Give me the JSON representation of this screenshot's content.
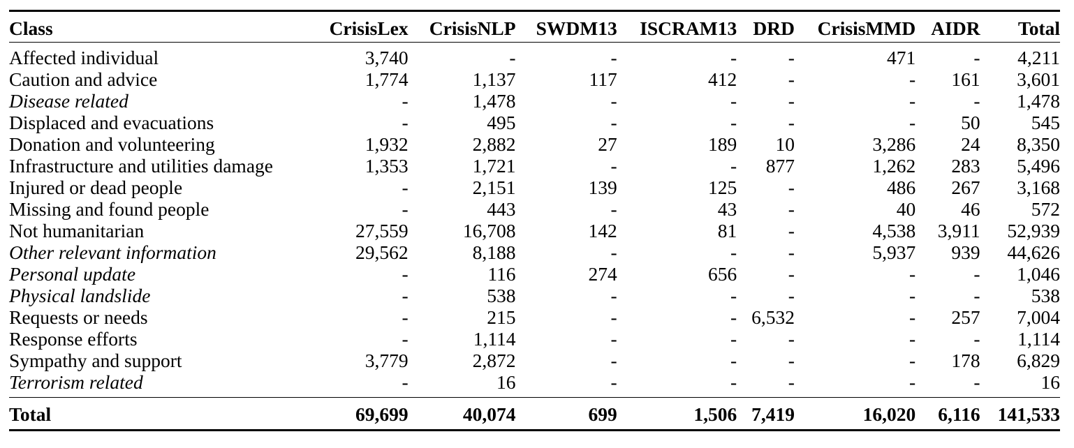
{
  "table": {
    "columns": [
      "Class",
      "CrisisLex",
      "CrisisNLP",
      "SWDM13",
      "ISCRAM13",
      "DRD",
      "CrisisMMD",
      "AIDR",
      "Total"
    ],
    "rows": [
      {
        "label": "Affected individual",
        "italic": false,
        "cells": [
          "3,740",
          "-",
          "-",
          "-",
          "-",
          "471",
          "-",
          "4,211"
        ]
      },
      {
        "label": "Caution and advice",
        "italic": false,
        "cells": [
          "1,774",
          "1,137",
          "117",
          "412",
          "-",
          "-",
          "161",
          "3,601"
        ]
      },
      {
        "label": "Disease related",
        "italic": true,
        "cells": [
          "-",
          "1,478",
          "-",
          "-",
          "-",
          "-",
          "-",
          "1,478"
        ]
      },
      {
        "label": "Displaced and evacuations",
        "italic": false,
        "cells": [
          "-",
          "495",
          "-",
          "-",
          "-",
          "-",
          "50",
          "545"
        ]
      },
      {
        "label": "Donation and volunteering",
        "italic": false,
        "cells": [
          "1,932",
          "2,882",
          "27",
          "189",
          "10",
          "3,286",
          "24",
          "8,350"
        ]
      },
      {
        "label": "Infrastructure and utilities damage",
        "italic": false,
        "cells": [
          "1,353",
          "1,721",
          "-",
          "-",
          "877",
          "1,262",
          "283",
          "5,496"
        ]
      },
      {
        "label": "Injured or dead people",
        "italic": false,
        "cells": [
          "-",
          "2,151",
          "139",
          "125",
          "-",
          "486",
          "267",
          "3,168"
        ]
      },
      {
        "label": "Missing and found people",
        "italic": false,
        "cells": [
          "-",
          "443",
          "-",
          "43",
          "-",
          "40",
          "46",
          "572"
        ]
      },
      {
        "label": "Not humanitarian",
        "italic": false,
        "cells": [
          "27,559",
          "16,708",
          "142",
          "81",
          "-",
          "4,538",
          "3,911",
          "52,939"
        ]
      },
      {
        "label": "Other relevant information",
        "italic": true,
        "cells": [
          "29,562",
          "8,188",
          "-",
          "-",
          "-",
          "5,937",
          "939",
          "44,626"
        ]
      },
      {
        "label": "Personal update",
        "italic": true,
        "cells": [
          "-",
          "116",
          "274",
          "656",
          "-",
          "-",
          "-",
          "1,046"
        ]
      },
      {
        "label": "Physical landslide",
        "italic": true,
        "cells": [
          "-",
          "538",
          "-",
          "-",
          "-",
          "-",
          "-",
          "538"
        ]
      },
      {
        "label": "Requests or needs",
        "italic": false,
        "cells": [
          "-",
          "215",
          "-",
          "-",
          "6,532",
          "-",
          "257",
          "7,004"
        ]
      },
      {
        "label": "Response efforts",
        "italic": false,
        "cells": [
          "-",
          "1,114",
          "-",
          "-",
          "-",
          "-",
          "-",
          "1,114"
        ]
      },
      {
        "label": "Sympathy and support",
        "italic": false,
        "cells": [
          "3,779",
          "2,872",
          "-",
          "-",
          "-",
          "-",
          "178",
          "6,829"
        ]
      },
      {
        "label": "Terrorism related",
        "italic": true,
        "cells": [
          "-",
          "16",
          "-",
          "-",
          "-",
          "-",
          "-",
          "16"
        ]
      }
    ],
    "total": {
      "label": "Total",
      "cells": [
        "69,699",
        "40,074",
        "699",
        "1,506",
        "7,419",
        "16,020",
        "6,116",
        "141,533"
      ]
    }
  }
}
